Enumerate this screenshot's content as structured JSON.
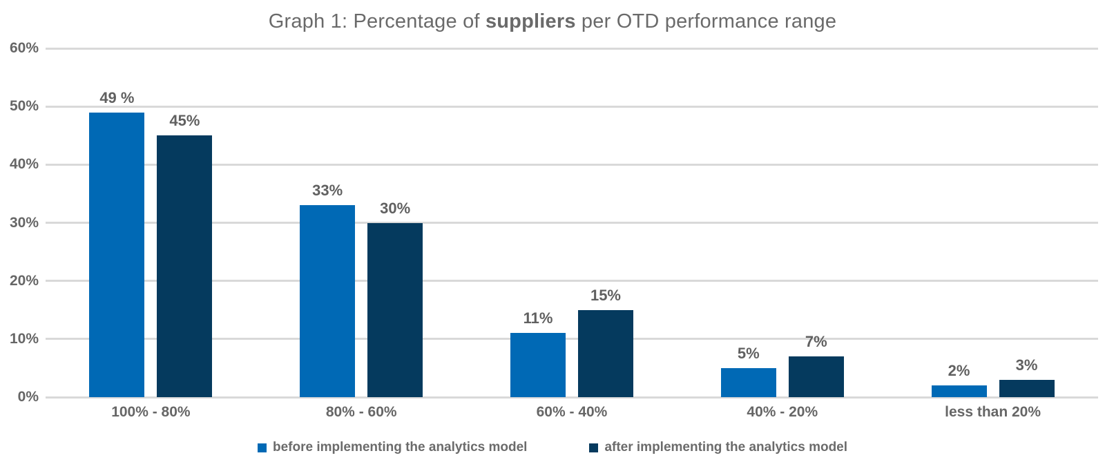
{
  "title": {
    "prefix": "Graph 1: Percentage of ",
    "bold": "suppliers",
    "suffix": " per OTD performance range"
  },
  "colors": {
    "series_before": "#0069B5",
    "series_after": "#053A5E",
    "grid": "#D9D9D9",
    "text": "#666666"
  },
  "chart_data": {
    "type": "bar",
    "title": "Graph 1: Percentage of suppliers per OTD performance range",
    "categories": [
      "100% - 80%",
      "80% - 60%",
      "60% - 40%",
      "40% - 20%",
      "less than 20%"
    ],
    "series": [
      {
        "name": "before implementing the analytics model",
        "color": "#0069B5",
        "values": [
          49,
          33,
          11,
          5,
          2
        ],
        "data_labels": [
          "49 %",
          "33%",
          "11%",
          "5%",
          "2%"
        ]
      },
      {
        "name": "after implementing the analytics model",
        "color": "#053A5E",
        "values": [
          45,
          30,
          15,
          7,
          3
        ],
        "data_labels": [
          "45%",
          "30%",
          "15%",
          "7%",
          "3%"
        ]
      }
    ],
    "xlabel": "",
    "ylabel": "",
    "y_axis": {
      "min": 0,
      "max": 60,
      "step": 10,
      "tick_labels": [
        "0%",
        "10%",
        "20%",
        "30%",
        "40%",
        "50%",
        "60%"
      ]
    },
    "grid": true,
    "legend_position": "bottom"
  }
}
